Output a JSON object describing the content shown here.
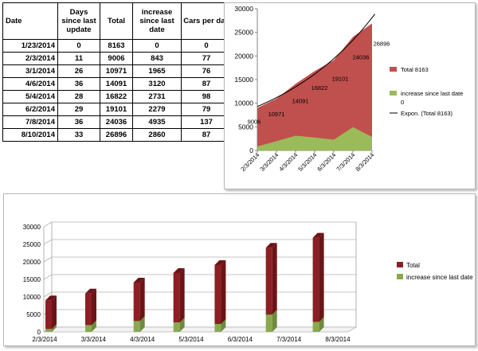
{
  "table": {
    "headers": [
      "Date",
      "Days since last update",
      "Total",
      "increase since last date",
      "Cars per day"
    ],
    "rows": [
      [
        "1/23/2014",
        "0",
        "8163",
        "0",
        "0"
      ],
      [
        "2/3/2014",
        "11",
        "9006",
        "843",
        "77"
      ],
      [
        "3/1/2014",
        "26",
        "10971",
        "1965",
        "76"
      ],
      [
        "4/6/2014",
        "36",
        "14091",
        "3120",
        "87"
      ],
      [
        "5/4/2014",
        "28",
        "16822",
        "2731",
        "98"
      ],
      [
        "6/2/2014",
        "29",
        "19101",
        "2279",
        "79"
      ],
      [
        "7/8/2014",
        "36",
        "24036",
        "4935",
        "137"
      ],
      [
        "8/10/2014",
        "33",
        "26896",
        "2860",
        "87"
      ]
    ]
  },
  "chart_data": [
    {
      "type": "area",
      "title": "",
      "xlabel": "",
      "ylabel": "",
      "categories": [
        "2/3/2014",
        "3/3/2014",
        "4/3/2014",
        "5/3/2014",
        "6/3/2014",
        "7/3/2014",
        "8/3/2014"
      ],
      "ylim": [
        0,
        30000
      ],
      "yticks": [
        "0",
        "5000",
        "10000",
        "15000",
        "20000",
        "25000",
        "30000"
      ],
      "series": [
        {
          "name": "Total 8163",
          "color": "#c0504d",
          "values": [
            9006,
            10971,
            14091,
            16822,
            19101,
            24036,
            26896
          ]
        },
        {
          "name": "increase since last date",
          "note": "0",
          "color": "#9bbb59",
          "values": [
            843,
            1965,
            3120,
            2731,
            2279,
            4935,
            2860
          ]
        }
      ],
      "data_labels": [
        "9006",
        "10971",
        "14091",
        "16822",
        "19101",
        "24036",
        "26896"
      ],
      "trendline": {
        "name": "Expon. (Total 8163)",
        "color": "#000000"
      },
      "grid": false,
      "legend": "right"
    },
    {
      "type": "bar",
      "style": "3d-column-stacked",
      "title": "",
      "xlabel": "",
      "ylabel": "",
      "x_date_labels": [
        "2/3/2014",
        "3/3/2014",
        "4/3/2014",
        "5/3/2014",
        "6/3/2014",
        "7/3/2014",
        "8/3/2014"
      ],
      "ylim": [
        0,
        30000
      ],
      "yticks": [
        "0",
        "5000",
        "10000",
        "15000",
        "20000",
        "25000",
        "30000"
      ],
      "bar_x_day": [
        0,
        28,
        62,
        90,
        119,
        155,
        188
      ],
      "series": [
        {
          "name": "Total",
          "color": "#8b1f24",
          "values": [
            9006,
            10971,
            14091,
            16822,
            19101,
            24036,
            26896
          ]
        },
        {
          "name": "increase since last date",
          "color": "#8aa94f",
          "values": [
            843,
            1965,
            3120,
            2731,
            2279,
            4935,
            2860
          ]
        }
      ],
      "grid": true,
      "legend": "right"
    }
  ]
}
